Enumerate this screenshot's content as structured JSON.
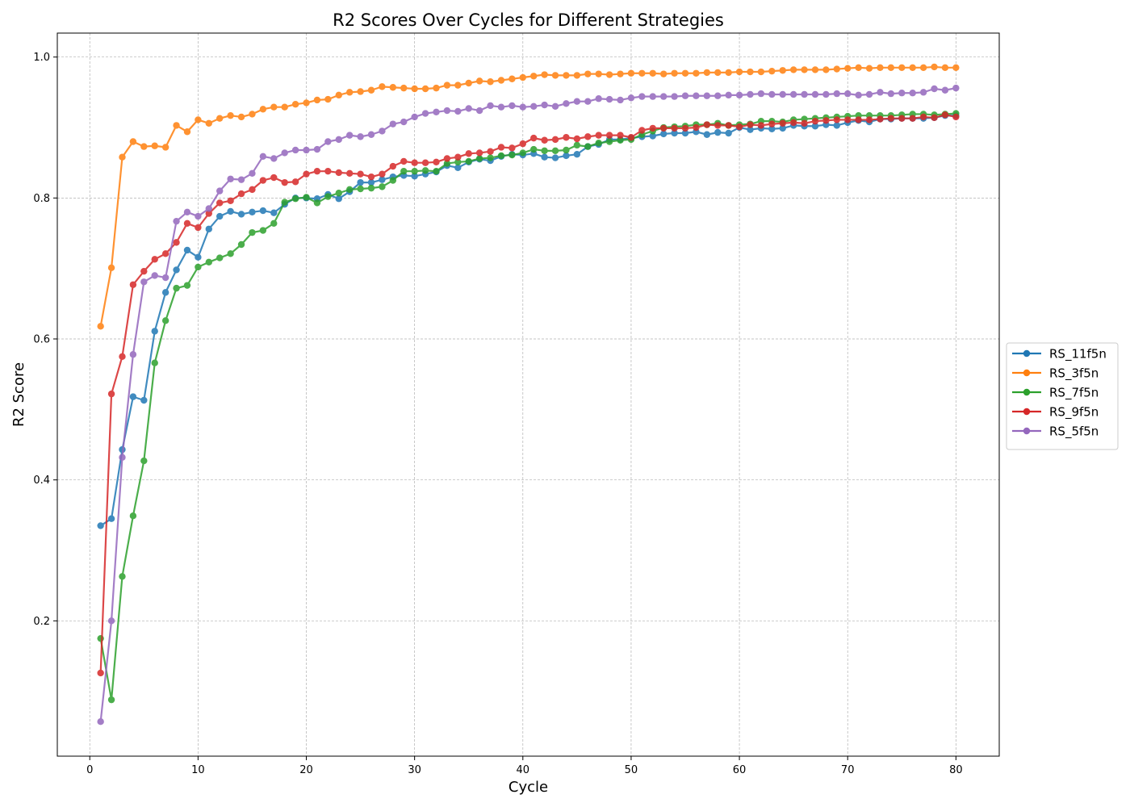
{
  "chart_data": {
    "type": "line",
    "title": "R2 Scores Over Cycles for Different Strategies",
    "xlabel": "Cycle",
    "ylabel": "R2 Score",
    "xlim": [
      -3,
      84
    ],
    "ylim": [
      0.008,
      1.034
    ],
    "xticks": [
      0,
      10,
      20,
      30,
      40,
      50,
      60,
      70,
      80
    ],
    "yticks": [
      0.2,
      0.4,
      0.6,
      0.8,
      1.0
    ],
    "xtick_labels": [
      "0",
      "10",
      "20",
      "30",
      "40",
      "50",
      "60",
      "70",
      "80"
    ],
    "ytick_labels": [
      "0.2",
      "0.4",
      "0.6",
      "0.8",
      "1.0"
    ],
    "grid": true,
    "legend_placement": "center-right-outside",
    "x": [
      1,
      2,
      3,
      4,
      5,
      6,
      7,
      8,
      9,
      10,
      11,
      12,
      13,
      14,
      15,
      16,
      17,
      18,
      19,
      20,
      21,
      22,
      23,
      24,
      25,
      26,
      27,
      28,
      29,
      30,
      31,
      32,
      33,
      34,
      35,
      36,
      37,
      38,
      39,
      40,
      41,
      42,
      43,
      44,
      45,
      46,
      47,
      48,
      49,
      50,
      51,
      52,
      53,
      54,
      55,
      56,
      57,
      58,
      59,
      60,
      61,
      62,
      63,
      64,
      65,
      66,
      67,
      68,
      69,
      70,
      71,
      72,
      73,
      74,
      75,
      76,
      77,
      78,
      79,
      80
    ],
    "series": [
      {
        "name": "RS_11f5n",
        "color": "#1f77b4",
        "values": [
          0.335,
          0.345,
          0.443,
          0.518,
          0.513,
          0.611,
          0.666,
          0.698,
          0.726,
          0.716,
          0.756,
          0.774,
          0.781,
          0.777,
          0.78,
          0.782,
          0.779,
          0.791,
          0.8,
          0.8,
          0.799,
          0.805,
          0.799,
          0.809,
          0.822,
          0.822,
          0.826,
          0.83,
          0.832,
          0.831,
          0.834,
          0.837,
          0.846,
          0.843,
          0.851,
          0.855,
          0.853,
          0.859,
          0.862,
          0.861,
          0.863,
          0.858,
          0.857,
          0.86,
          0.862,
          0.873,
          0.876,
          0.883,
          0.883,
          0.885,
          0.887,
          0.888,
          0.891,
          0.892,
          0.892,
          0.894,
          0.89,
          0.893,
          0.892,
          0.9,
          0.897,
          0.899,
          0.898,
          0.899,
          0.903,
          0.902,
          0.902,
          0.904,
          0.903,
          0.907,
          0.91,
          0.908,
          0.912,
          0.912,
          0.913,
          0.913,
          0.913,
          0.914,
          0.917,
          0.917
        ]
      },
      {
        "name": "RS_3f5n",
        "color": "#ff7f0e",
        "values": [
          0.618,
          0.701,
          0.858,
          0.88,
          0.873,
          0.874,
          0.872,
          0.903,
          0.894,
          0.911,
          0.906,
          0.913,
          0.917,
          0.915,
          0.919,
          0.926,
          0.929,
          0.929,
          0.933,
          0.935,
          0.939,
          0.94,
          0.946,
          0.95,
          0.951,
          0.953,
          0.958,
          0.957,
          0.956,
          0.955,
          0.955,
          0.956,
          0.96,
          0.96,
          0.963,
          0.966,
          0.965,
          0.967,
          0.969,
          0.971,
          0.973,
          0.975,
          0.974,
          0.974,
          0.974,
          0.976,
          0.976,
          0.975,
          0.976,
          0.977,
          0.977,
          0.977,
          0.976,
          0.977,
          0.977,
          0.977,
          0.978,
          0.978,
          0.978,
          0.979,
          0.979,
          0.979,
          0.98,
          0.981,
          0.982,
          0.982,
          0.982,
          0.982,
          0.983,
          0.984,
          0.985,
          0.984,
          0.985,
          0.985,
          0.985,
          0.985,
          0.985,
          0.986,
          0.985,
          0.985
        ]
      },
      {
        "name": "RS_7f5n",
        "color": "#2ca02c",
        "values": [
          0.175,
          0.088,
          0.263,
          0.349,
          0.427,
          0.566,
          0.626,
          0.672,
          0.676,
          0.702,
          0.709,
          0.715,
          0.721,
          0.734,
          0.751,
          0.754,
          0.764,
          0.794,
          0.799,
          0.801,
          0.793,
          0.802,
          0.807,
          0.812,
          0.813,
          0.814,
          0.816,
          0.825,
          0.838,
          0.838,
          0.839,
          0.838,
          0.849,
          0.851,
          0.852,
          0.856,
          0.857,
          0.86,
          0.861,
          0.864,
          0.869,
          0.867,
          0.867,
          0.868,
          0.875,
          0.873,
          0.878,
          0.88,
          0.882,
          0.883,
          0.89,
          0.895,
          0.9,
          0.901,
          0.902,
          0.904,
          0.904,
          0.906,
          0.903,
          0.904,
          0.905,
          0.909,
          0.909,
          0.908,
          0.911,
          0.912,
          0.913,
          0.914,
          0.915,
          0.916,
          0.917,
          0.917,
          0.917,
          0.917,
          0.918,
          0.919,
          0.919,
          0.918,
          0.919,
          0.92
        ]
      },
      {
        "name": "RS_9f5n",
        "color": "#d62728",
        "values": [
          0.126,
          0.522,
          0.575,
          0.677,
          0.696,
          0.713,
          0.721,
          0.737,
          0.764,
          0.758,
          0.778,
          0.793,
          0.796,
          0.806,
          0.812,
          0.825,
          0.829,
          0.822,
          0.823,
          0.834,
          0.838,
          0.838,
          0.836,
          0.835,
          0.834,
          0.83,
          0.834,
          0.845,
          0.852,
          0.85,
          0.85,
          0.851,
          0.856,
          0.858,
          0.863,
          0.864,
          0.866,
          0.872,
          0.871,
          0.877,
          0.885,
          0.882,
          0.883,
          0.886,
          0.884,
          0.887,
          0.889,
          0.889,
          0.889,
          0.886,
          0.896,
          0.899,
          0.899,
          0.899,
          0.899,
          0.9,
          0.904,
          0.903,
          0.903,
          0.901,
          0.904,
          0.903,
          0.905,
          0.906,
          0.907,
          0.906,
          0.909,
          0.91,
          0.911,
          0.911,
          0.911,
          0.911,
          0.912,
          0.913,
          0.913,
          0.913,
          0.915,
          0.914,
          0.918,
          0.915
        ]
      },
      {
        "name": "RS_5f5n",
        "color": "#9467bd",
        "values": [
          0.057,
          0.2,
          0.432,
          0.578,
          0.681,
          0.69,
          0.687,
          0.767,
          0.78,
          0.774,
          0.785,
          0.81,
          0.827,
          0.826,
          0.835,
          0.859,
          0.856,
          0.864,
          0.868,
          0.868,
          0.869,
          0.88,
          0.883,
          0.889,
          0.887,
          0.89,
          0.895,
          0.905,
          0.908,
          0.915,
          0.92,
          0.922,
          0.924,
          0.923,
          0.927,
          0.924,
          0.931,
          0.929,
          0.931,
          0.929,
          0.93,
          0.932,
          0.93,
          0.934,
          0.937,
          0.937,
          0.941,
          0.94,
          0.939,
          0.942,
          0.944,
          0.944,
          0.944,
          0.944,
          0.945,
          0.945,
          0.945,
          0.945,
          0.946,
          0.946,
          0.947,
          0.948,
          0.947,
          0.947,
          0.947,
          0.947,
          0.947,
          0.947,
          0.948,
          0.948,
          0.946,
          0.947,
          0.95,
          0.948,
          0.949,
          0.949,
          0.95,
          0.955,
          0.953,
          0.956
        ]
      }
    ]
  }
}
